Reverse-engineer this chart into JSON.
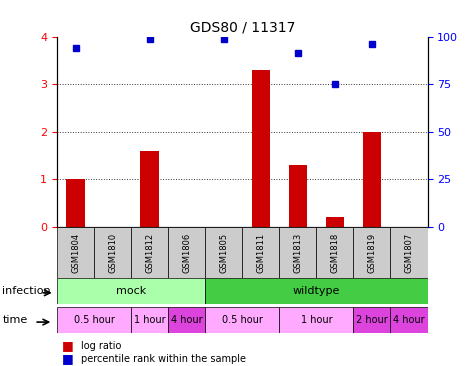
{
  "title": "GDS80 / 11317",
  "samples": [
    "GSM1804",
    "GSM1810",
    "GSM1812",
    "GSM1806",
    "GSM1805",
    "GSM1811",
    "GSM1813",
    "GSM1818",
    "GSM1819",
    "GSM1807"
  ],
  "log_ratio": [
    1.0,
    0.0,
    1.6,
    0.0,
    0.0,
    3.3,
    1.3,
    0.2,
    2.0,
    0.0
  ],
  "percentile": [
    3.75,
    0.0,
    3.95,
    0.0,
    3.95,
    0.0,
    3.65,
    3.0,
    3.85,
    0.0
  ],
  "percentile_show": [
    true,
    false,
    true,
    false,
    true,
    false,
    true,
    true,
    true,
    false
  ],
  "ylim_left": [
    0,
    4
  ],
  "ylim_right": [
    0,
    100
  ],
  "yticks_left": [
    0,
    1,
    2,
    3,
    4
  ],
  "yticks_right": [
    0,
    25,
    50,
    75,
    100
  ],
  "bar_color": "#cc0000",
  "dot_color": "#0000cc",
  "grid_color": "#333333",
  "bg_color": "#ffffff",
  "infection_row": [
    {
      "label": "mock",
      "start": 0,
      "end": 4,
      "color": "#aaffaa"
    },
    {
      "label": "wildtype",
      "start": 4,
      "end": 10,
      "color": "#44cc44"
    }
  ],
  "time_row": [
    {
      "label": "0.5 hour",
      "start": 0,
      "end": 2,
      "color": "#ffaaff"
    },
    {
      "label": "1 hour",
      "start": 2,
      "end": 3,
      "color": "#ffaaff"
    },
    {
      "label": "4 hour",
      "start": 3,
      "end": 4,
      "color": "#dd44dd"
    },
    {
      "label": "0.5 hour",
      "start": 4,
      "end": 6,
      "color": "#ffaaff"
    },
    {
      "label": "1 hour",
      "start": 6,
      "end": 8,
      "color": "#ffaaff"
    },
    {
      "label": "2 hour",
      "start": 8,
      "end": 9,
      "color": "#dd44dd"
    },
    {
      "label": "4 hour",
      "start": 9,
      "end": 10,
      "color": "#dd44dd"
    }
  ],
  "legend_items": [
    {
      "label": "log ratio",
      "color": "#cc0000",
      "marker": "s"
    },
    {
      "label": "percentile rank within the sample",
      "color": "#0000cc",
      "marker": "s"
    }
  ],
  "tick_label_color": "#333333",
  "sample_bg_color": "#cccccc"
}
